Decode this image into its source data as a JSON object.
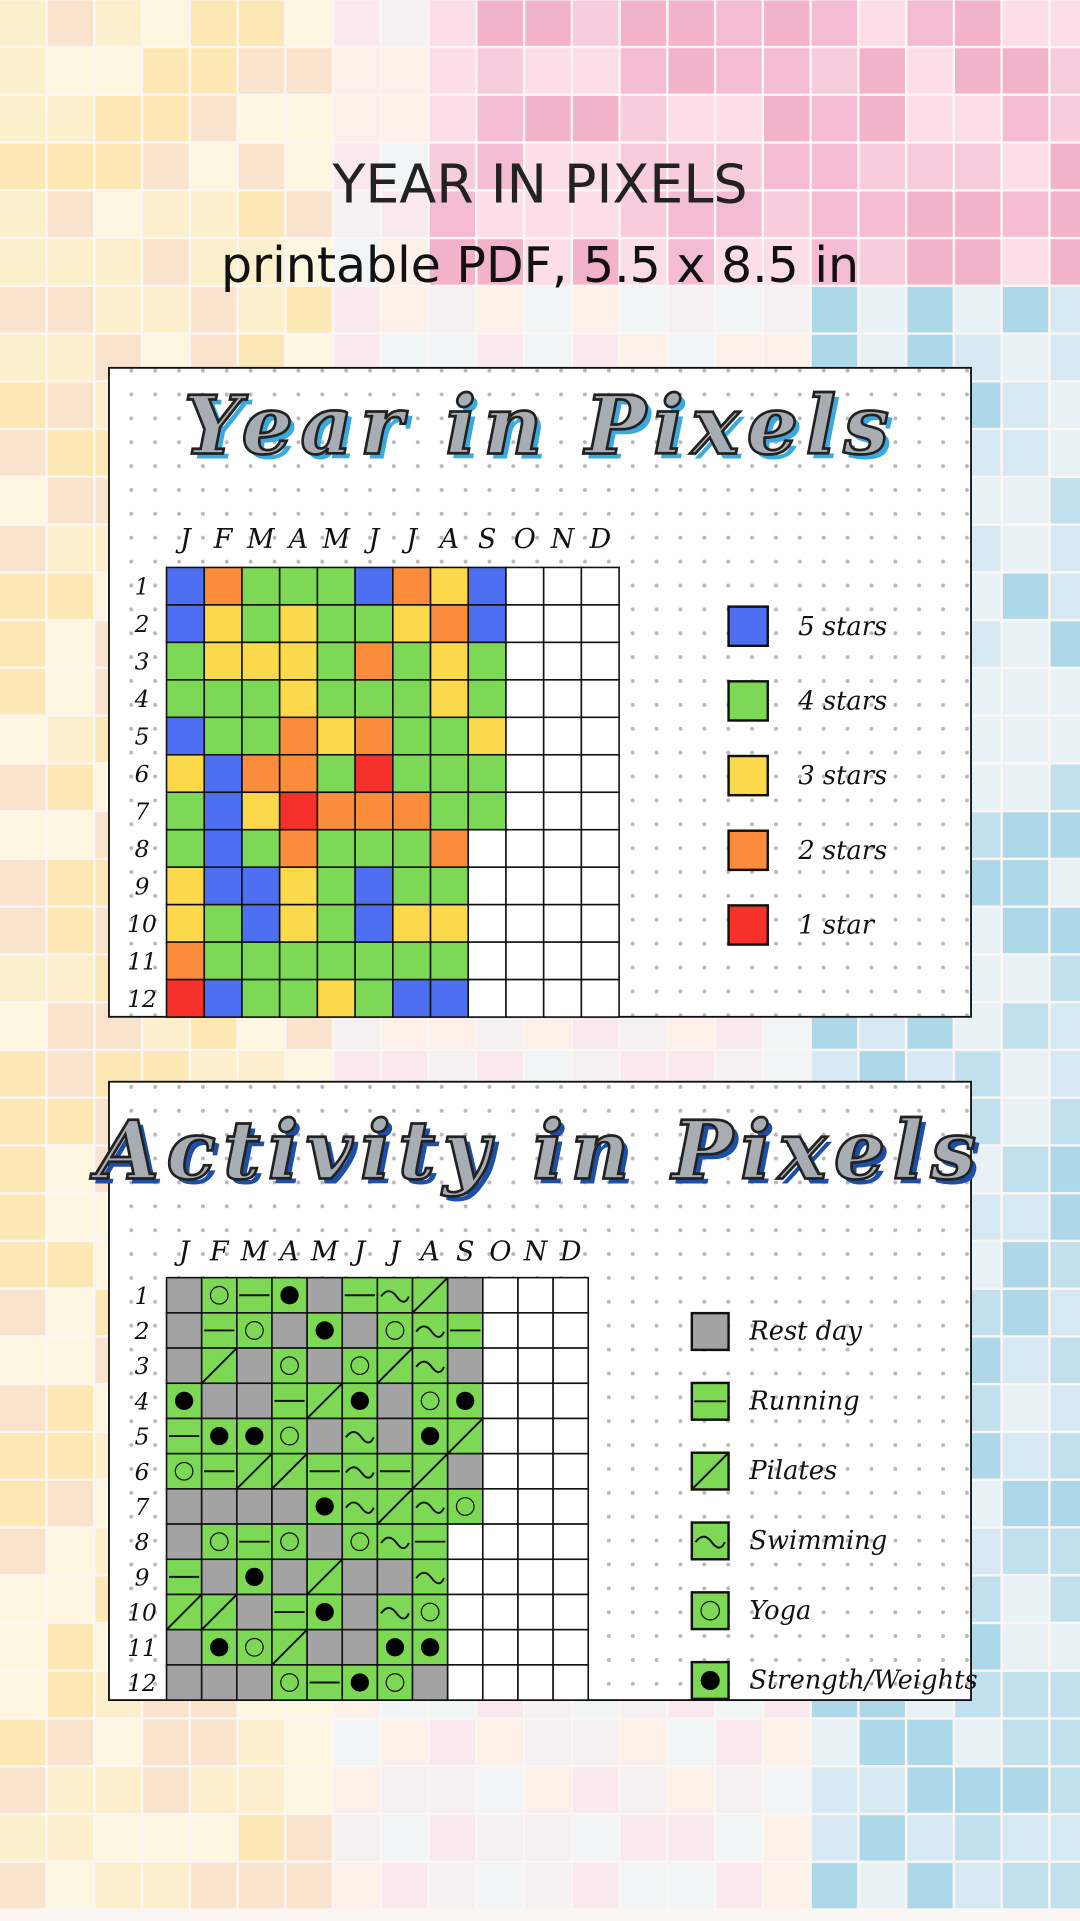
{
  "header": {
    "title": "YEAR IN PIXELS",
    "subtitle": "printable PDF, 5.5 x 8.5 in"
  },
  "panels": [
    {
      "title": "Year in Pixels",
      "months": [
        "J",
        "F",
        "M",
        "A",
        "M",
        "J",
        "J",
        "A",
        "S",
        "O",
        "N",
        "D"
      ],
      "days": [
        "1",
        "2",
        "3",
        "4",
        "5",
        "6",
        "7",
        "8",
        "9",
        "10",
        "11",
        "12"
      ],
      "legend": [
        {
          "label": "5 stars",
          "color": "#4f6ff2"
        },
        {
          "label": "4 stars",
          "color": "#7dd855"
        },
        {
          "label": "3 stars",
          "color": "#fbd94a"
        },
        {
          "label": "2 stars",
          "color": "#fb8c3c"
        },
        {
          "label": "1 star",
          "color": "#f6312c"
        }
      ],
      "rows": [
        [
          "5 stars",
          "2 stars",
          "4 stars",
          "4 stars",
          "4 stars",
          "5 stars",
          "2 stars",
          "3 stars",
          "5 stars",
          null,
          null,
          null
        ],
        [
          "5 stars",
          "3 stars",
          "4 stars",
          "3 stars",
          "4 stars",
          "4 stars",
          "3 stars",
          "2 stars",
          "5 stars",
          null,
          null,
          null
        ],
        [
          "4 stars",
          "3 stars",
          "3 stars",
          "3 stars",
          "4 stars",
          "2 stars",
          "4 stars",
          "3 stars",
          "4 stars",
          null,
          null,
          null
        ],
        [
          "4 stars",
          "4 stars",
          "4 stars",
          "3 stars",
          "4 stars",
          "4 stars",
          "4 stars",
          "3 stars",
          "4 stars",
          null,
          null,
          null
        ],
        [
          "5 stars",
          "4 stars",
          "4 stars",
          "2 stars",
          "3 stars",
          "2 stars",
          "4 stars",
          "4 stars",
          "3 stars",
          null,
          null,
          null
        ],
        [
          "3 stars",
          "5 stars",
          "2 stars",
          "2 stars",
          "4 stars",
          "1 star",
          "4 stars",
          "4 stars",
          "4 stars",
          null,
          null,
          null
        ],
        [
          "4 stars",
          "5 stars",
          "3 stars",
          "1 star",
          "2 stars",
          "2 stars",
          "2 stars",
          "4 stars",
          "4 stars",
          null,
          null,
          null
        ],
        [
          "4 stars",
          "5 stars",
          "4 stars",
          "2 stars",
          "4 stars",
          "4 stars",
          "4 stars",
          "2 stars",
          null,
          null,
          null,
          null
        ],
        [
          "3 stars",
          "5 stars",
          "5 stars",
          "3 stars",
          "4 stars",
          "5 stars",
          "4 stars",
          "4 stars",
          null,
          null,
          null,
          null
        ],
        [
          "3 stars",
          "4 stars",
          "5 stars",
          "3 stars",
          "4 stars",
          "5 stars",
          "3 stars",
          "3 stars",
          null,
          null,
          null,
          null
        ],
        [
          "2 stars",
          "4 stars",
          "4 stars",
          "4 stars",
          "4 stars",
          "4 stars",
          "4 stars",
          "4 stars",
          null,
          null,
          null,
          null
        ],
        [
          "1 star",
          "5 stars",
          "4 stars",
          "4 stars",
          "3 stars",
          "4 stars",
          "5 stars",
          "5 stars",
          null,
          null,
          null,
          null
        ]
      ]
    },
    {
      "title": "Activity in Pixels",
      "months": [
        "J",
        "F",
        "M",
        "A",
        "M",
        "J",
        "J",
        "A",
        "S",
        "O",
        "N",
        "D"
      ],
      "days": [
        "1",
        "2",
        "3",
        "4",
        "5",
        "6",
        "7",
        "8",
        "9",
        "10",
        "11",
        "12"
      ],
      "legend": [
        {
          "label": "Rest day",
          "color": "#a3a3a3",
          "symbol": "none"
        },
        {
          "label": "Running",
          "color": "#7dd855",
          "symbol": "dash"
        },
        {
          "label": "Pilates",
          "color": "#7dd855",
          "symbol": "slash"
        },
        {
          "label": "Swimming",
          "color": "#7dd855",
          "symbol": "wave"
        },
        {
          "label": "Yoga",
          "color": "#7dd855",
          "symbol": "ring"
        },
        {
          "label": "Strength/Weights",
          "color": "#7dd855",
          "symbol": "dot"
        }
      ],
      "rows": [
        [
          "Rest day",
          "Yoga",
          "Running",
          "Strength/Weights",
          "Rest day",
          "Running",
          "Swimming",
          "Pilates",
          "Rest day",
          null,
          null,
          null
        ],
        [
          "Rest day",
          "Running",
          "Yoga",
          "Rest day",
          "Strength/Weights",
          "Rest day",
          "Yoga",
          "Swimming",
          "Running",
          null,
          null,
          null
        ],
        [
          "Rest day",
          "Pilates",
          "Rest day",
          "Yoga",
          "Rest day",
          "Yoga",
          "Pilates",
          "Swimming",
          "Rest day",
          null,
          null,
          null
        ],
        [
          "Strength/Weights",
          "Rest day",
          "Rest day",
          "Running",
          "Pilates",
          "Strength/Weights",
          "Rest day",
          "Yoga",
          "Strength/Weights",
          null,
          null,
          null
        ],
        [
          "Running",
          "Strength/Weights",
          "Strength/Weights",
          "Yoga",
          "Rest day",
          "Swimming",
          "Rest day",
          "Strength/Weights",
          "Pilates",
          null,
          null,
          null
        ],
        [
          "Yoga",
          "Running",
          "Pilates",
          "Pilates",
          "Running",
          "Swimming",
          "Running",
          "Pilates",
          "Rest day",
          null,
          null,
          null
        ],
        [
          "Rest day",
          "Rest day",
          "Rest day",
          "Rest day",
          "Strength/Weights",
          "Swimming",
          "Pilates",
          "Swimming",
          "Yoga",
          null,
          null,
          null
        ],
        [
          "Rest day",
          "Yoga",
          "Running",
          "Yoga",
          "Rest day",
          "Yoga",
          "Swimming",
          "Running",
          null,
          null,
          null,
          null
        ],
        [
          "Running",
          "Rest day",
          "Strength/Weights",
          "Rest day",
          "Pilates",
          "Rest day",
          "Rest day",
          "Swimming",
          null,
          null,
          null,
          null
        ],
        [
          "Pilates",
          "Pilates",
          "Rest day",
          "Running",
          "Strength/Weights",
          "Rest day",
          "Swimming",
          "Yoga",
          null,
          null,
          null,
          null
        ],
        [
          "Rest day",
          "Strength/Weights",
          "Yoga",
          "Pilates",
          "Rest day",
          "Rest day",
          "Strength/Weights",
          "Strength/Weights",
          null,
          null,
          null,
          null
        ],
        [
          "Rest day",
          "Rest day",
          "Rest day",
          "Yoga",
          "Running",
          "Strength/Weights",
          "Yoga",
          "Rest day",
          null,
          null,
          null,
          null
        ]
      ]
    }
  ]
}
